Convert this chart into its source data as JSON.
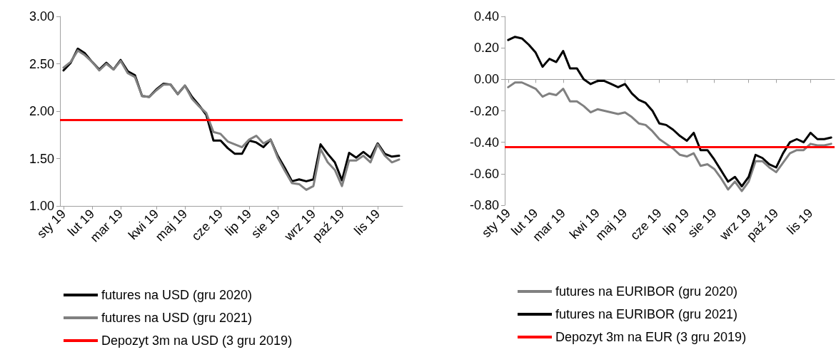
{
  "chart_data": [
    {
      "type": "line",
      "categories": [
        "sty 19",
        null,
        null,
        null,
        "lut 19",
        null,
        null,
        null,
        "mar 19",
        null,
        null,
        null,
        null,
        "kwi 19",
        null,
        null,
        null,
        "maj 19",
        null,
        null,
        null,
        null,
        "cze 19",
        null,
        null,
        null,
        "lip 19",
        null,
        null,
        null,
        "sie 19",
        null,
        null,
        null,
        null,
        "wrz 19",
        null,
        null,
        null,
        "paź 19",
        null,
        null,
        null,
        null,
        "lis 19",
        null,
        null,
        null
      ],
      "series": [
        {
          "name": "futures na USD (gru 2020)",
          "color": "#000000",
          "values": [
            2.43,
            2.51,
            2.66,
            2.61,
            2.52,
            2.44,
            2.51,
            2.44,
            2.54,
            2.42,
            2.38,
            2.16,
            2.15,
            2.23,
            2.29,
            2.28,
            2.18,
            2.27,
            2.15,
            2.06,
            1.96,
            1.69,
            1.69,
            1.61,
            1.55,
            1.55,
            1.69,
            1.67,
            1.62,
            1.7,
            1.53,
            1.4,
            1.26,
            1.28,
            1.26,
            1.28,
            1.65,
            1.55,
            1.46,
            1.27,
            1.56,
            1.51,
            1.57,
            1.51,
            1.66,
            1.55,
            1.52,
            1.53
          ]
        },
        {
          "name": "futures na USD (gru 2021)",
          "color": "#808080",
          "values": [
            2.46,
            2.52,
            2.64,
            2.59,
            2.52,
            2.43,
            2.5,
            2.44,
            2.53,
            2.4,
            2.36,
            2.16,
            2.15,
            2.22,
            2.28,
            2.28,
            2.18,
            2.27,
            2.13,
            2.05,
            1.98,
            1.78,
            1.76,
            1.68,
            1.65,
            1.62,
            1.7,
            1.74,
            1.66,
            1.7,
            1.51,
            1.37,
            1.24,
            1.23,
            1.17,
            1.21,
            1.6,
            1.46,
            1.38,
            1.21,
            1.48,
            1.48,
            1.53,
            1.46,
            1.65,
            1.53,
            1.46,
            1.49
          ]
        }
      ],
      "ylim": [
        1,
        3
      ],
      "yticks": [
        {
          "value": 1,
          "label": "1.00"
        },
        {
          "value": 1.5,
          "label": "1.50"
        },
        {
          "value": 2,
          "label": "2.00"
        },
        {
          "value": 2.5,
          "label": "2.50"
        },
        {
          "value": 3,
          "label": "3.00"
        }
      ],
      "ref_lines": [
        {
          "axis": "y",
          "value": 1.91,
          "label": "Depozyt 3m na USD (3 gru 2019)",
          "color": "#ff0000"
        }
      ],
      "legend": "bottom"
    },
    {
      "type": "line",
      "categories": [
        "sty 19",
        null,
        null,
        null,
        "lut 19",
        null,
        null,
        null,
        "mar 19",
        null,
        null,
        null,
        null,
        "kwi 19",
        null,
        null,
        null,
        "maj 19",
        null,
        null,
        null,
        null,
        "cze 19",
        null,
        null,
        null,
        "lip 19",
        null,
        null,
        null,
        "sie 19",
        null,
        null,
        null,
        null,
        "wrz 19",
        null,
        null,
        null,
        "paź 19",
        null,
        null,
        null,
        null,
        "lis 19",
        null,
        null,
        null
      ],
      "series": [
        {
          "name": "futures na EURIBOR (gru 2020)",
          "color": "#808080",
          "values": [
            -0.05,
            -0.02,
            -0.02,
            -0.04,
            -0.06,
            -0.11,
            -0.09,
            -0.1,
            -0.06,
            -0.14,
            -0.14,
            -0.17,
            -0.21,
            -0.19,
            -0.2,
            -0.21,
            -0.22,
            -0.21,
            -0.24,
            -0.28,
            -0.29,
            -0.33,
            -0.38,
            -0.41,
            -0.44,
            -0.48,
            -0.49,
            -0.47,
            -0.55,
            -0.54,
            -0.57,
            -0.63,
            -0.7,
            -0.65,
            -0.71,
            -0.65,
            -0.52,
            -0.52,
            -0.56,
            -0.59,
            -0.53,
            -0.47,
            -0.45,
            -0.45,
            -0.41,
            -0.42,
            -0.42,
            -0.41
          ]
        },
        {
          "name": "futures na EURIBOR (gru 2021)",
          "color": "#000000",
          "values": [
            0.25,
            0.27,
            0.26,
            0.22,
            0.17,
            0.08,
            0.13,
            0.11,
            0.18,
            0.07,
            0.07,
            0.0,
            -0.03,
            -0.01,
            -0.01,
            -0.03,
            -0.05,
            -0.03,
            -0.09,
            -0.13,
            -0.15,
            -0.2,
            -0.28,
            -0.29,
            -0.32,
            -0.36,
            -0.39,
            -0.34,
            -0.45,
            -0.45,
            -0.51,
            -0.58,
            -0.65,
            -0.62,
            -0.68,
            -0.62,
            -0.48,
            -0.5,
            -0.54,
            -0.56,
            -0.47,
            -0.4,
            -0.38,
            -0.4,
            -0.34,
            -0.38,
            -0.38,
            -0.37
          ]
        }
      ],
      "ylim": [
        -0.8,
        0.4
      ],
      "yticks": [
        {
          "value": -0.8,
          "label": "-0.80"
        },
        {
          "value": -0.6,
          "label": "-0.60"
        },
        {
          "value": -0.4,
          "label": "-0.40"
        },
        {
          "value": -0.2,
          "label": "-0.20"
        },
        {
          "value": 0,
          "label": "0.00"
        },
        {
          "value": 0.2,
          "label": "0.20"
        },
        {
          "value": 0.4,
          "label": "0.40"
        }
      ],
      "ref_lines": [
        {
          "axis": "y",
          "value": -0.43,
          "label": "Depozyt 3m na EUR (3 gru 2019)",
          "color": "#ff0000"
        }
      ],
      "legend": "bottom"
    }
  ]
}
